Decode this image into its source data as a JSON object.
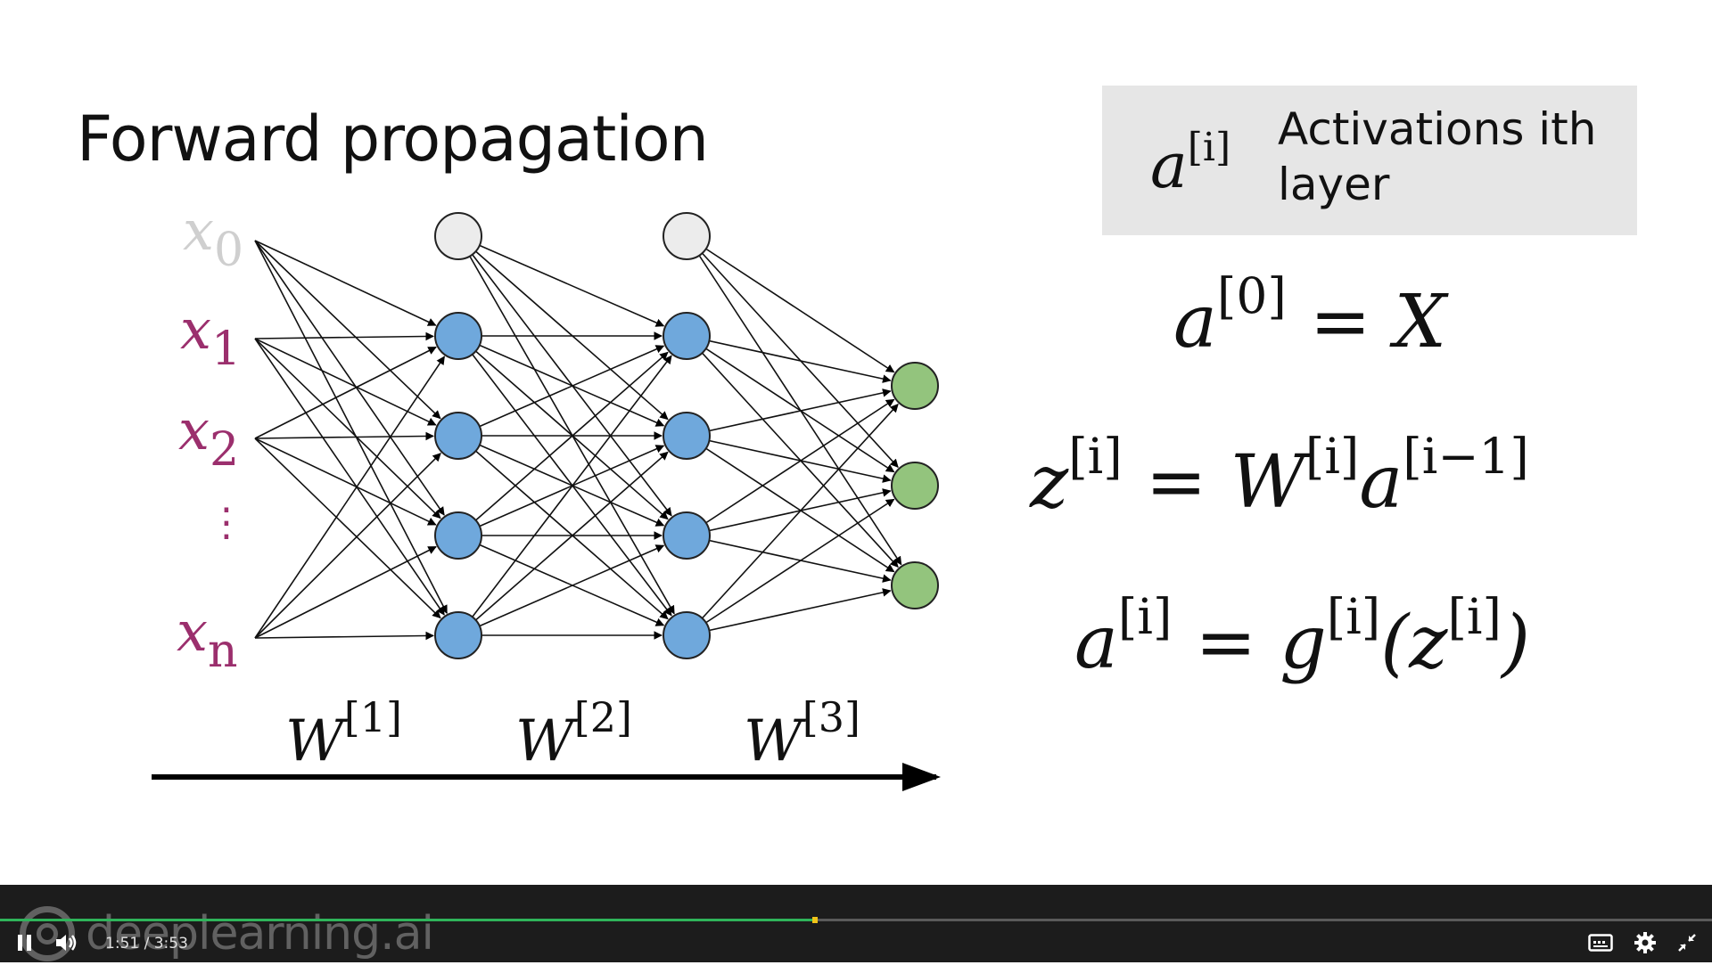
{
  "slide": {
    "title": "Forward propagation",
    "legend": {
      "symbol_base": "a",
      "symbol_sup": "[i]",
      "text": "Activations ith layer"
    },
    "equations": [
      {
        "lhs": "a",
        "lhs_sup": "[0]",
        "rhs": "= X"
      },
      {
        "lhs": "z",
        "lhs_sup": "[i]",
        "rhs1": "= W",
        "rhs1_sup": "[i]",
        "rhs2": "a",
        "rhs2_sup": "[i−1]"
      },
      {
        "lhs": "a",
        "lhs_sup": "[i]",
        "rhs1": "= g",
        "rhs1_sup": "[i]",
        "rhs2": "(z",
        "rhs2_sup": "[i]",
        "rhs3": ")"
      }
    ],
    "input_labels": [
      {
        "base": "x",
        "sub": "0"
      },
      {
        "base": "x",
        "sub": "1"
      },
      {
        "base": "x",
        "sub": "2"
      },
      {
        "base": "x",
        "sub": "n"
      }
    ],
    "vdots": "⋮",
    "weight_labels": [
      {
        "base": "W",
        "sup": "[1]"
      },
      {
        "base": "W",
        "sup": "[2]"
      },
      {
        "base": "W",
        "sup": "[3]"
      }
    ],
    "colors": {
      "bias_node": "#ececec",
      "hidden_node": "#6fa8dc",
      "output_node": "#93c47d",
      "input_label": "#9b2f6d",
      "legend_bg": "#e6e6e6"
    }
  },
  "player": {
    "watermark": "deeplearning.ai",
    "time_current": "1:51",
    "time_separator": "/",
    "time_total": "3:53",
    "progress_fraction": 0.476,
    "icons": [
      "pause-icon",
      "volume-icon",
      "captions-icon",
      "settings-icon",
      "exit-fullscreen-icon"
    ]
  }
}
